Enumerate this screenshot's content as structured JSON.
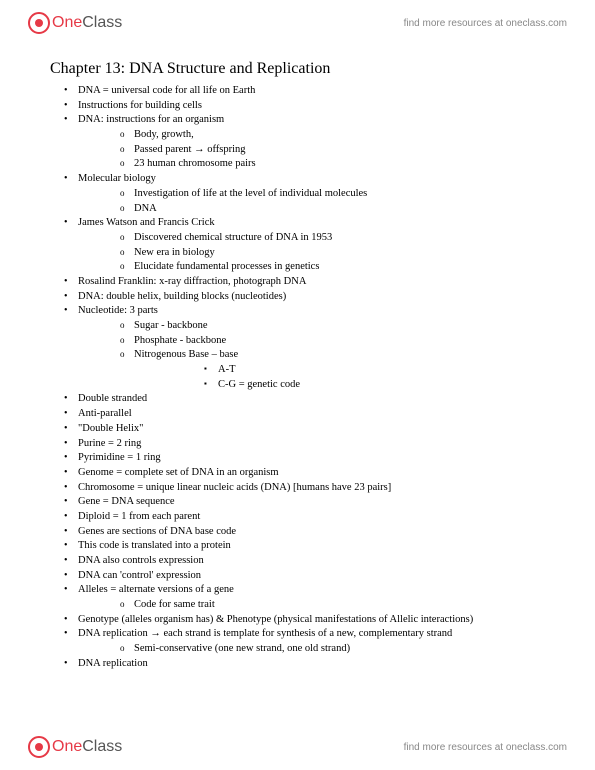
{
  "brand": {
    "one": "One",
    "class": "Class",
    "link_text": "find more resources at oneclass.com"
  },
  "chapter_title": "Chapter 13: DNA Structure and Replication",
  "items": [
    {
      "t": "DNA = universal code for all life on Earth"
    },
    {
      "t": "Instructions for building cells"
    },
    {
      "t": "DNA: instructions for an organism",
      "c": [
        {
          "t": "Body, growth,"
        },
        {
          "t": "Passed parent → offspring"
        },
        {
          "t": "23 human chromosome pairs"
        }
      ]
    },
    {
      "t": "Molecular biology",
      "c": [
        {
          "t": "Investigation of life at the level of individual molecules"
        },
        {
          "t": "DNA"
        }
      ]
    },
    {
      "t": "James Watson and Francis Crick",
      "c": [
        {
          "t": "Discovered chemical structure of DNA in 1953"
        },
        {
          "t": "New era in biology"
        },
        {
          "t": "Elucidate fundamental processes in genetics"
        }
      ]
    },
    {
      "t": "Rosalind Franklin: x-ray diffraction, photograph DNA"
    },
    {
      "t": "DNA: double helix, building blocks (nucleotides)"
    },
    {
      "t": "Nucleotide: 3 parts",
      "c": [
        {
          "t": "Sugar - backbone"
        },
        {
          "t": "Phosphate - backbone"
        },
        {
          "t": "Nitrogenous Base – base",
          "c": [
            {
              "t": "A-T"
            },
            {
              "t": "C-G = genetic code"
            }
          ]
        }
      ]
    },
    {
      "t": "Double stranded"
    },
    {
      "t": "Anti-parallel"
    },
    {
      "t": "\"Double Helix\""
    },
    {
      "t": "Purine = 2 ring"
    },
    {
      "t": "Pyrimidine = 1 ring"
    },
    {
      "t": "Genome = complete set of DNA in an organism"
    },
    {
      "t": "Chromosome = unique linear nucleic acids (DNA) [humans have 23 pairs]"
    },
    {
      "t": "Gene = DNA sequence"
    },
    {
      "t": "Diploid = 1 from each parent"
    },
    {
      "t": "Genes are sections of DNA base code"
    },
    {
      "t": "This code is translated into a protein"
    },
    {
      "t": "DNA also controls expression"
    },
    {
      "t": "DNA can 'control' expression"
    },
    {
      "t": "Alleles = alternate versions of a gene",
      "c": [
        {
          "t": "Code for same trait"
        }
      ]
    },
    {
      "t": "Genotype (alleles organism has) & Phenotype (physical manifestations of Allelic interactions)"
    },
    {
      "t": "DNA replication → each strand is template for synthesis of a new, complementary strand",
      "c": [
        {
          "t": "Semi-conservative (one new strand, one old strand)"
        }
      ]
    },
    {
      "t": "DNA replication"
    }
  ]
}
